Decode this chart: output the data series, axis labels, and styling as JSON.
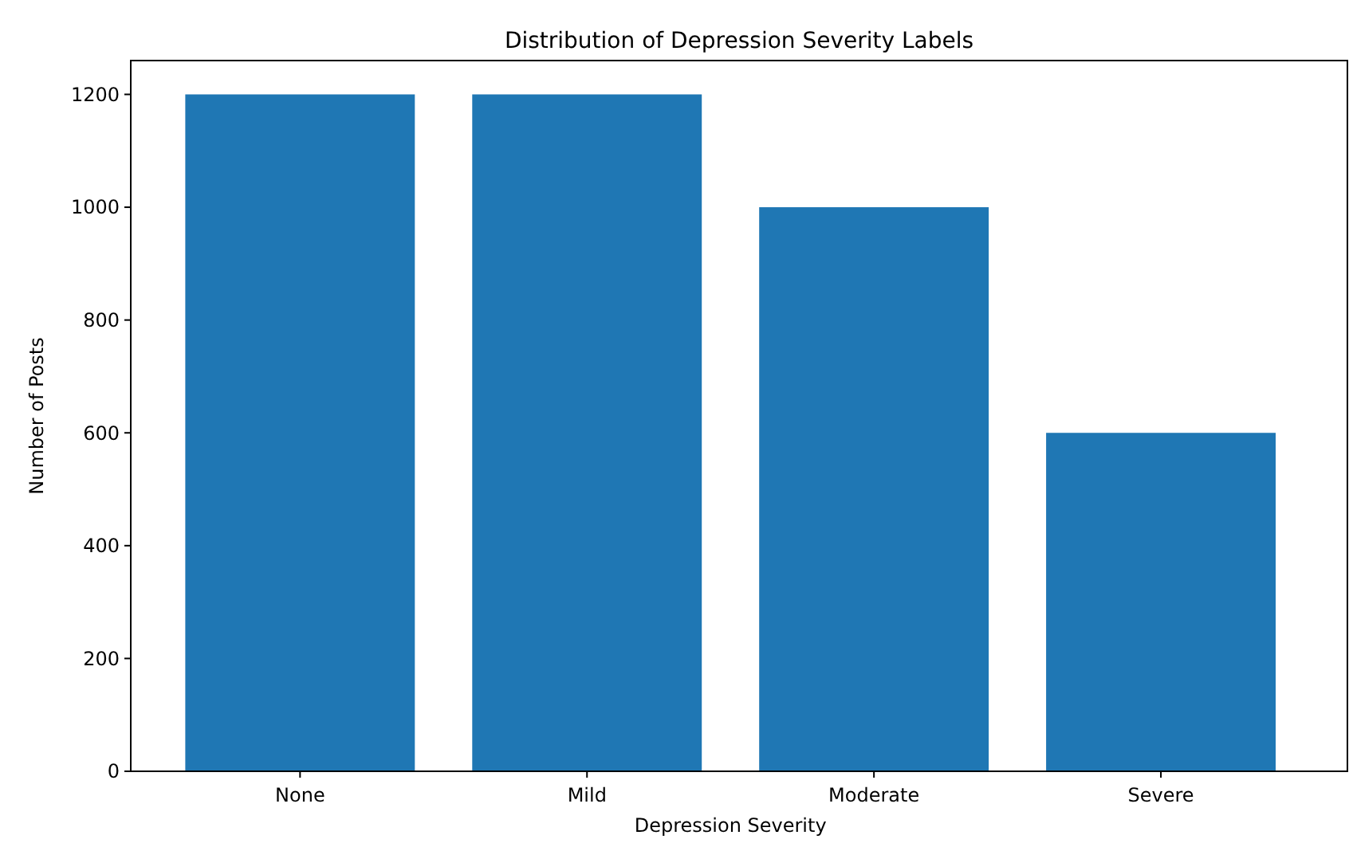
{
  "chart_data": {
    "type": "bar",
    "title": "Distribution of Depression Severity Labels",
    "xlabel": "Depression Severity",
    "ylabel": "Number of Posts",
    "categories": [
      "None",
      "Mild",
      "Moderate",
      "Severe"
    ],
    "values": [
      1200,
      1200,
      1000,
      600
    ],
    "color": "#1f77b4",
    "ylim": [
      0,
      1260
    ],
    "yticks": [
      0,
      200,
      400,
      600,
      800,
      1000,
      1200
    ]
  }
}
